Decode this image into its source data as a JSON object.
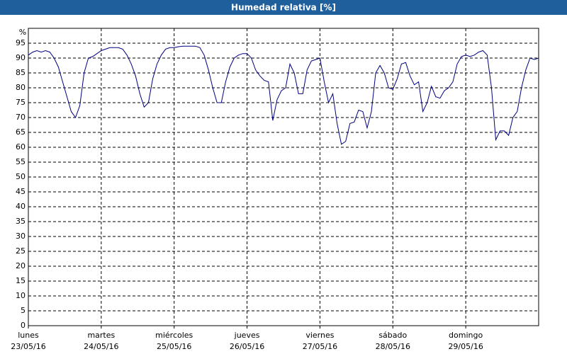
{
  "chart_data": {
    "type": "line",
    "title": "Humedad relativa [%]",
    "y_label": "%",
    "xticks": [
      {
        "weekday": "lunes",
        "date": "23/05/16"
      },
      {
        "weekday": "martes",
        "date": "24/05/16"
      },
      {
        "weekday": "miércoles",
        "date": "25/05/16"
      },
      {
        "weekday": "jueves",
        "date": "26/05/16"
      },
      {
        "weekday": "viernes",
        "date": "27/05/16"
      },
      {
        "weekday": "sábado",
        "date": "28/05/16"
      },
      {
        "weekday": "domingo",
        "date": "29/05/16"
      }
    ],
    "values": [
      91,
      92,
      92.5,
      92,
      92.5,
      92,
      90,
      87,
      82,
      77,
      72,
      70,
      74,
      85,
      90,
      90.5,
      91.5,
      92.5,
      93,
      93.5,
      93.5,
      93.5,
      93,
      91,
      88,
      84,
      78,
      73.5,
      75,
      83,
      88,
      91,
      93,
      93.5,
      93.5,
      93.8,
      94,
      94,
      94,
      94,
      93.5,
      91,
      86,
      80,
      75,
      75,
      82,
      87,
      90,
      91,
      91.5,
      91.5,
      90,
      86,
      84,
      82.5,
      82,
      69,
      76,
      79,
      80,
      88,
      85,
      78,
      78,
      86,
      89,
      89.5,
      90,
      82,
      75,
      78,
      68,
      61,
      62,
      68,
      68.5,
      72.5,
      72,
      66.5,
      72,
      85,
      87.5,
      85,
      80,
      79.5,
      83,
      88,
      88.5,
      84,
      81,
      82,
      72,
      75,
      80.5,
      77,
      76.5,
      79,
      80,
      82,
      88,
      90.5,
      91,
      90.5,
      91,
      92,
      92.5,
      91,
      80,
      62.5,
      65.5,
      65.5,
      64,
      70,
      72,
      80,
      86,
      90,
      89.5,
      90
    ],
    "color": "#000080",
    "ylim": [
      0,
      100
    ],
    "yticks": [
      0,
      5,
      10,
      15,
      20,
      25,
      30,
      35,
      40,
      45,
      50,
      55,
      60,
      65,
      70,
      75,
      80,
      85,
      90,
      95
    ],
    "grid": true
  }
}
